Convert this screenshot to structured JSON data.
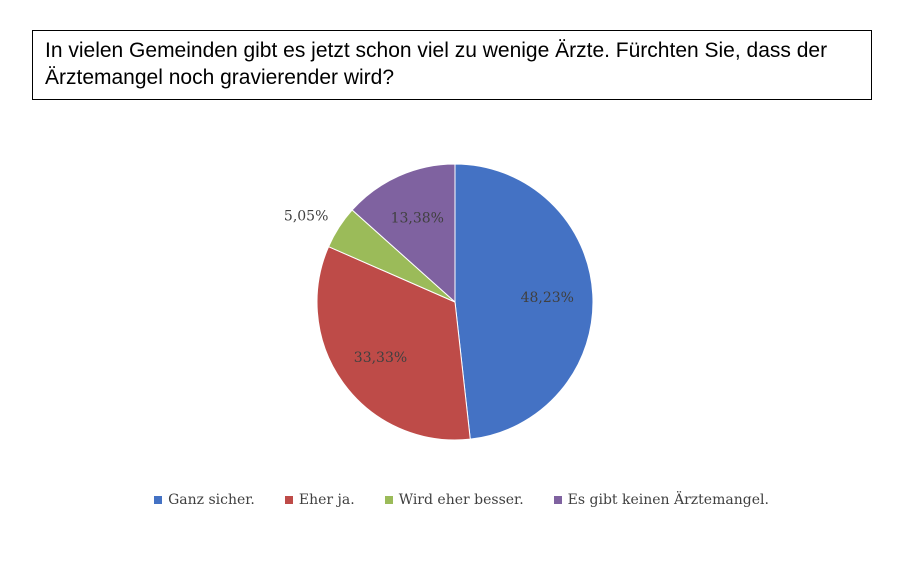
{
  "question": "In vielen Gemeinden gibt es jetzt schon viel zu wenige Ärzte. Fürchten Sie, dass der Ärztemangel noch gravierender wird?",
  "chart_data": {
    "type": "pie",
    "title": "In vielen Gemeinden gibt es jetzt schon viel zu wenige Ärzte. Fürchten Sie, dass der Ärztemangel noch gravierender wird?",
    "categories": [
      "Ganz sicher.",
      "Eher ja.",
      "Wird eher besser.",
      "Es gibt keinen Ärztemangel."
    ],
    "values": [
      48.23,
      33.33,
      5.05,
      13.38
    ],
    "labels": [
      "48,23%",
      "33,33%",
      "5,05%",
      "13,38%"
    ],
    "colors": [
      "#4472C4",
      "#BE4B48",
      "#9BBB59",
      "#7F62A0"
    ],
    "legend_position": "bottom"
  }
}
